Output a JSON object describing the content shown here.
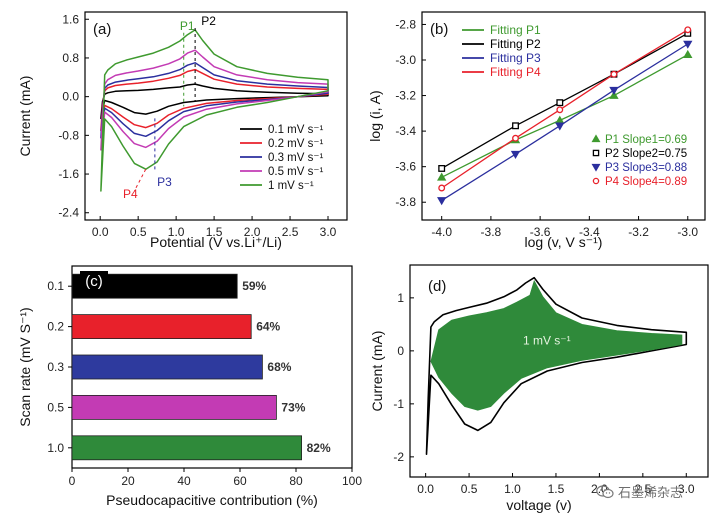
{
  "chart_data": [
    {
      "panel_label": "(a)",
      "type": "line",
      "xlabel": "Potential (V vs.Li⁺/Li)",
      "ylabel": "Current (mA)",
      "xlim": [
        -0.2,
        3.25
      ],
      "ylim": [
        -2.55,
        1.75
      ],
      "xticks": [
        0.0,
        0.5,
        1.0,
        1.5,
        2.0,
        2.5,
        3.0
      ],
      "xtick_labels": [
        "0.0",
        "0.5",
        "1.0",
        "1.5",
        "2.0",
        "2.5",
        "3.0"
      ],
      "yticks": [
        1.6,
        0.8,
        0.0,
        -0.8,
        -1.6,
        -2.4
      ],
      "ytick_labels": [
        "1.6",
        "0.8",
        "0.0",
        "-0.8",
        "-1.6",
        "-2.4"
      ],
      "grid": false,
      "legend_position": "bottom-right",
      "series": [
        {
          "name": "0.1 mV s⁻¹",
          "color": "#000000",
          "x": [
            0.01,
            0.03,
            0.06,
            0.1,
            0.2,
            0.35,
            0.5,
            0.7,
            0.9,
            1.05,
            1.15,
            1.25,
            1.35,
            1.5,
            1.8,
            2.2,
            2.6,
            3.0,
            3.0,
            2.6,
            2.2,
            1.8,
            1.4,
            1.1,
            0.9,
            0.75,
            0.6,
            0.45,
            0.3,
            0.15,
            0.06,
            0.01
          ],
          "y": [
            -0.45,
            -0.1,
            0.05,
            0.08,
            0.11,
            0.12,
            0.13,
            0.15,
            0.18,
            0.2,
            0.24,
            0.26,
            0.22,
            0.17,
            0.12,
            0.09,
            0.07,
            0.06,
            0.02,
            0.0,
            -0.02,
            -0.04,
            -0.07,
            -0.12,
            -0.2,
            -0.3,
            -0.36,
            -0.33,
            -0.22,
            -0.12,
            -0.08,
            -0.45
          ]
        },
        {
          "name": "0.2 mV s⁻¹",
          "color": "#e8212b",
          "x": [
            0.01,
            0.03,
            0.06,
            0.1,
            0.2,
            0.35,
            0.5,
            0.7,
            0.9,
            1.05,
            1.15,
            1.25,
            1.35,
            1.5,
            1.8,
            2.2,
            2.6,
            3.0,
            3.0,
            2.6,
            2.2,
            1.8,
            1.4,
            1.1,
            0.9,
            0.75,
            0.6,
            0.45,
            0.3,
            0.15,
            0.06,
            0.01
          ],
          "y": [
            -0.7,
            -0.2,
            0.12,
            0.18,
            0.23,
            0.26,
            0.28,
            0.32,
            0.38,
            0.44,
            0.52,
            0.56,
            0.48,
            0.36,
            0.26,
            0.2,
            0.17,
            0.15,
            0.05,
            0.0,
            -0.04,
            -0.08,
            -0.14,
            -0.24,
            -0.38,
            -0.55,
            -0.64,
            -0.58,
            -0.42,
            -0.25,
            -0.18,
            -0.7
          ]
        },
        {
          "name": "0.3 mV s⁻¹",
          "color": "#2b2f9e",
          "x": [
            0.01,
            0.03,
            0.06,
            0.1,
            0.2,
            0.35,
            0.5,
            0.7,
            0.9,
            1.05,
            1.15,
            1.25,
            1.35,
            1.5,
            1.8,
            2.2,
            2.6,
            3.0,
            3.0,
            2.6,
            2.2,
            1.8,
            1.4,
            1.1,
            0.9,
            0.75,
            0.6,
            0.45,
            0.3,
            0.15,
            0.06,
            0.01
          ],
          "y": [
            -0.85,
            -0.3,
            0.17,
            0.24,
            0.3,
            0.34,
            0.37,
            0.41,
            0.48,
            0.56,
            0.65,
            0.7,
            0.6,
            0.45,
            0.33,
            0.26,
            0.22,
            0.19,
            0.07,
            0.0,
            -0.06,
            -0.11,
            -0.19,
            -0.31,
            -0.5,
            -0.7,
            -0.82,
            -0.76,
            -0.56,
            -0.33,
            -0.24,
            -0.85
          ]
        },
        {
          "name": "0.5 mV s⁻¹",
          "color": "#c33bb4",
          "x": [
            0.01,
            0.03,
            0.06,
            0.1,
            0.2,
            0.35,
            0.5,
            0.7,
            0.9,
            1.05,
            1.15,
            1.25,
            1.35,
            1.5,
            1.8,
            2.2,
            2.6,
            3.0,
            3.0,
            2.6,
            2.2,
            1.8,
            1.4,
            1.1,
            0.9,
            0.75,
            0.6,
            0.45,
            0.3,
            0.15,
            0.06,
            0.01
          ],
          "y": [
            -1.1,
            -0.4,
            0.26,
            0.35,
            0.44,
            0.49,
            0.53,
            0.59,
            0.68,
            0.78,
            0.9,
            0.96,
            0.82,
            0.62,
            0.45,
            0.35,
            0.29,
            0.26,
            0.1,
            0.0,
            -0.08,
            -0.15,
            -0.26,
            -0.42,
            -0.66,
            -0.92,
            -1.05,
            -0.97,
            -0.72,
            -0.43,
            -0.32,
            -1.1
          ]
        },
        {
          "name": "1 mV s⁻¹",
          "color": "#3f9a2f",
          "x": [
            0.01,
            0.03,
            0.06,
            0.1,
            0.2,
            0.35,
            0.5,
            0.7,
            0.9,
            1.05,
            1.15,
            1.25,
            1.35,
            1.5,
            1.8,
            2.2,
            2.6,
            3.0,
            3.0,
            2.6,
            2.2,
            1.8,
            1.4,
            1.1,
            0.9,
            0.75,
            0.6,
            0.45,
            0.3,
            0.15,
            0.06,
            0.01
          ],
          "y": [
            -1.95,
            -0.9,
            0.45,
            0.55,
            0.68,
            0.76,
            0.82,
            0.9,
            1.02,
            1.15,
            1.28,
            1.38,
            1.16,
            0.88,
            0.62,
            0.48,
            0.4,
            0.35,
            0.12,
            0.0,
            -0.12,
            -0.22,
            -0.38,
            -0.62,
            -0.98,
            -1.35,
            -1.5,
            -1.38,
            -1.02,
            -0.62,
            -0.46,
            -1.95
          ]
        }
      ],
      "annotations": [
        {
          "text": "P1",
          "x": 1.05,
          "y": 1.38,
          "color": "#3f9a2f"
        },
        {
          "text": "P2",
          "x": 1.33,
          "y": 1.48,
          "color": "#000000"
        },
        {
          "text": "P3",
          "x": 0.75,
          "y": -1.85,
          "color": "#2b2f9e"
        },
        {
          "text": "P4",
          "x": 0.3,
          "y": -2.1,
          "color": "#e8212b"
        }
      ]
    },
    {
      "panel_label": "(b)",
      "type": "scatter",
      "xlabel": "log (v, V s⁻¹)",
      "ylabel": "log (i, A)",
      "xlim": [
        -4.08,
        -2.93
      ],
      "ylim": [
        -3.9,
        -2.73
      ],
      "xticks": [
        -4.0,
        -3.8,
        -3.6,
        -3.4,
        -3.2,
        -3.0
      ],
      "xtick_labels": [
        "-4.0",
        "-3.8",
        "-3.6",
        "-3.4",
        "-3.2",
        "-3.0"
      ],
      "yticks": [
        -2.8,
        -3.0,
        -3.2,
        -3.4,
        -3.6,
        -3.8
      ],
      "ytick_labels": [
        "-2.8",
        "-3.0",
        "-3.2",
        "-3.4",
        "-3.6",
        "-3.8"
      ],
      "grid": false,
      "legend_position": "top-left",
      "x": [
        -4.0,
        -3.7,
        -3.52,
        -3.3,
        -3.0
      ],
      "series": [
        {
          "name": "Fitting P1",
          "color": "#3f9a2f",
          "marker": "triangle-up",
          "values": [
            -3.66,
            -3.45,
            -3.34,
            -3.2,
            -2.97
          ]
        },
        {
          "name": "Fitting P2",
          "color": "#000000",
          "marker": "square",
          "values": [
            -3.61,
            -3.37,
            -3.24,
            -3.08,
            -2.85
          ]
        },
        {
          "name": "Fitting P3",
          "color": "#2b2f9e",
          "marker": "triangle-down",
          "values": [
            -3.79,
            -3.53,
            -3.37,
            -3.17,
            -2.91
          ]
        },
        {
          "name": "Fitting P4",
          "color": "#e8212b",
          "marker": "circle",
          "values": [
            -3.72,
            -3.44,
            -3.28,
            -3.08,
            -2.83
          ]
        }
      ],
      "slopes": [
        {
          "label": "P1",
          "text": "Slope1=0.69",
          "color": "#3f9a2f",
          "marker": "triangle-up"
        },
        {
          "label": "P2",
          "text": "Slope2=0.75",
          "color": "#000000",
          "marker": "square"
        },
        {
          "label": "P3",
          "text": "Slope3=0.88",
          "color": "#2b2f9e",
          "marker": "triangle-down"
        },
        {
          "label": "P4",
          "text": "Slope4=0.89",
          "color": "#e8212b",
          "marker": "circle"
        }
      ]
    },
    {
      "panel_label": "(c)",
      "type": "bar",
      "orientation": "horizontal",
      "xlabel": "Pseudocapacitive contribution (%)",
      "ylabel": "Scan rate (mV S⁻¹)",
      "xlim": [
        0,
        100
      ],
      "xticks": [
        0,
        20,
        40,
        60,
        80,
        100
      ],
      "xtick_labels": [
        "0",
        "20",
        "40",
        "60",
        "80",
        "100"
      ],
      "grid": false,
      "categories": [
        "0.1",
        "0.2",
        "0.3",
        "0.5",
        "1.0"
      ],
      "values": [
        59,
        64,
        68,
        73,
        82
      ],
      "value_labels": [
        "59%",
        "64%",
        "68%",
        "73%",
        "82%"
      ],
      "colors": [
        "#000000",
        "#e8212b",
        "#2e3a9e",
        "#c33bb4",
        "#2f8a3a"
      ]
    },
    {
      "panel_label": "(d)",
      "type": "area",
      "xlabel": "voltage (v)",
      "ylabel": "Current (mA)",
      "xlim": [
        -0.18,
        3.25
      ],
      "ylim": [
        -2.38,
        1.62
      ],
      "xticks": [
        0.0,
        0.5,
        1.0,
        1.5,
        2.0,
        2.5,
        3.0
      ],
      "xtick_labels": [
        "0.0",
        "0.5",
        "1.0",
        "1.5",
        "2.0",
        "2.5",
        "3.0"
      ],
      "yticks": [
        1,
        0,
        -1,
        -2
      ],
      "ytick_labels": [
        "1",
        "0",
        "-1",
        "-2"
      ],
      "grid": false,
      "annotation": "1 mV s⁻¹",
      "fill_color": "#2f8a3a",
      "total": {
        "x": [
          0.01,
          0.03,
          0.06,
          0.1,
          0.2,
          0.35,
          0.5,
          0.7,
          0.9,
          1.05,
          1.15,
          1.25,
          1.35,
          1.5,
          1.8,
          2.2,
          2.6,
          3.0,
          3.0,
          2.6,
          2.2,
          1.8,
          1.4,
          1.1,
          0.9,
          0.75,
          0.6,
          0.45,
          0.3,
          0.15,
          0.06,
          0.01
        ],
        "y": [
          -1.95,
          -0.9,
          0.45,
          0.55,
          0.68,
          0.76,
          0.82,
          0.9,
          1.02,
          1.15,
          1.28,
          1.38,
          1.16,
          0.88,
          0.62,
          0.48,
          0.4,
          0.35,
          0.12,
          0.0,
          -0.12,
          -0.22,
          -0.38,
          -0.62,
          -0.98,
          -1.35,
          -1.5,
          -1.38,
          -1.02,
          -0.62,
          -0.46,
          -1.95
        ]
      },
      "capacitive": {
        "x": [
          0.06,
          0.15,
          0.3,
          0.5,
          0.7,
          0.9,
          1.05,
          1.2,
          1.25,
          1.35,
          1.5,
          1.8,
          2.2,
          2.6,
          2.95,
          2.95,
          2.6,
          2.2,
          1.8,
          1.4,
          1.1,
          0.9,
          0.75,
          0.6,
          0.45,
          0.3,
          0.15,
          0.06
        ],
        "y": [
          -0.2,
          0.4,
          0.58,
          0.66,
          0.72,
          0.8,
          0.92,
          1.05,
          1.32,
          1.02,
          0.72,
          0.5,
          0.38,
          0.33,
          0.3,
          0.12,
          0.02,
          -0.08,
          -0.18,
          -0.32,
          -0.52,
          -0.8,
          -1.05,
          -1.12,
          -1.05,
          -0.8,
          -0.5,
          -0.2
        ]
      }
    }
  ],
  "watermark": {
    "text": "石墨烯杂志",
    "icon": "wechat-icon"
  }
}
